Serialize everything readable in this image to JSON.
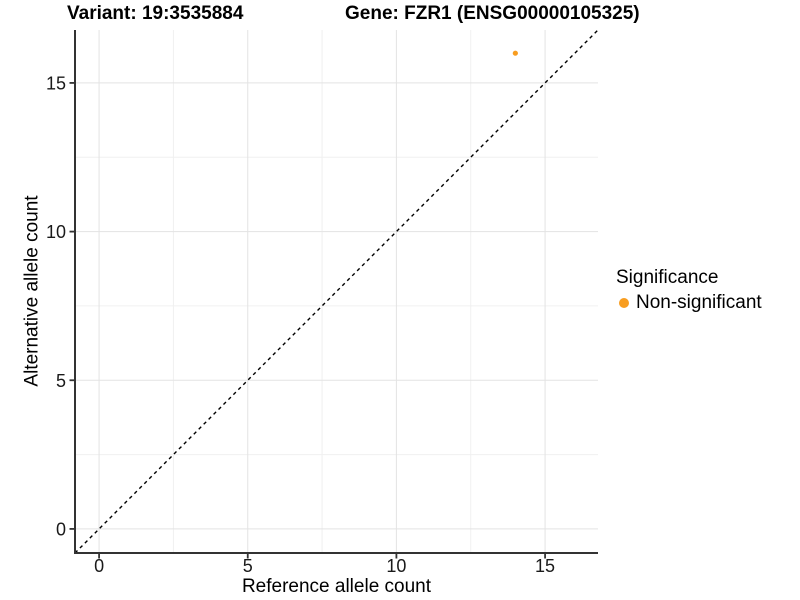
{
  "page": {
    "background": "#FFFFFF"
  },
  "chart_data": {
    "type": "scatter",
    "title_left": "Variant: 19:3535884",
    "title_right": "Gene: FZR1 (ENSG00000105325)",
    "xlabel": "Reference allele count",
    "ylabel": "Alternative allele count",
    "x_ticks": [
      0,
      5,
      10,
      15
    ],
    "y_ticks": [
      0,
      5,
      10,
      15
    ],
    "xlim": [
      -0.81,
      16.78
    ],
    "ylim": [
      -0.81,
      16.78
    ],
    "grid": {
      "major": true,
      "minor": true,
      "major_color": "#E3E3E3",
      "minor_color": "#F0F0F0"
    },
    "axis_line_color": "#333333",
    "tick_label_color": "#1A1A1A",
    "reference_line": {
      "kind": "identity y = x",
      "style": "dashed",
      "color": "#000000"
    },
    "points": [
      {
        "x": 14,
        "y": 16,
        "significance": "Non-significant"
      }
    ],
    "legend": {
      "title": "Significance",
      "position": "right",
      "entries": [
        {
          "label": "Non-significant",
          "color": "#F89D20"
        }
      ]
    }
  }
}
